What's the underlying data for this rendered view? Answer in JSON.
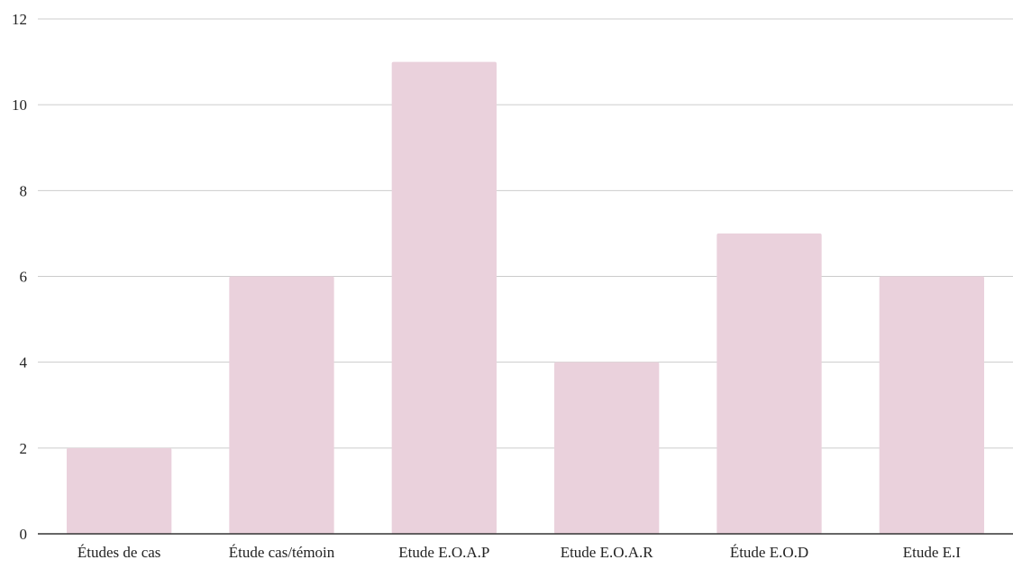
{
  "chart_data": {
    "type": "bar",
    "title": "",
    "xlabel": "",
    "ylabel": "",
    "categories": [
      "Études de cas",
      "Étude cas/témoin",
      "Etude E.O.A.P",
      "Etude E.O.A.R",
      "Étude E.O.D",
      "Etude E.I"
    ],
    "values": [
      2,
      6,
      11,
      4,
      7,
      6
    ],
    "ylim": [
      0,
      12
    ],
    "yticks": [
      "0",
      "2",
      "4",
      "6",
      "8",
      "10",
      "12"
    ],
    "grid": true,
    "legend": "none",
    "colors": {
      "bar": "#ead1dc",
      "grid": "#cccccc",
      "axis": "#333333"
    }
  }
}
